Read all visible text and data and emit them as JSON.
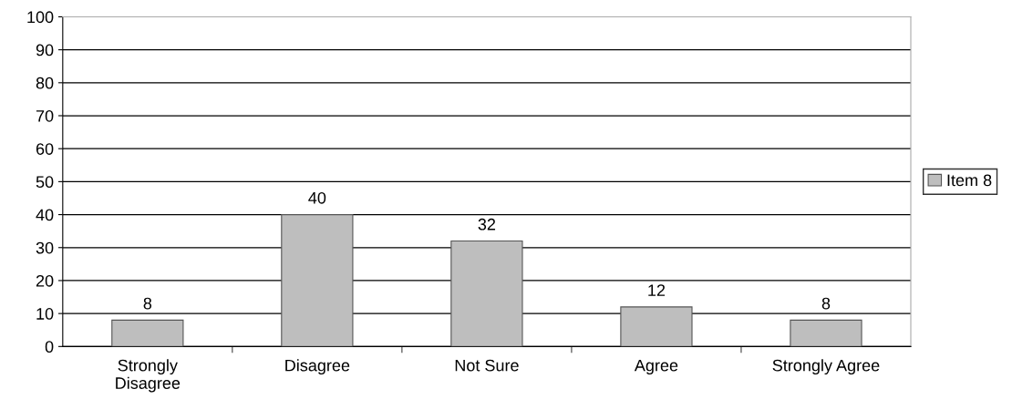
{
  "chart_data": {
    "type": "bar",
    "categories": [
      "Strongly\nDisagree",
      "Disagree",
      "Not Sure",
      "Agree",
      "Strongly Agree"
    ],
    "series": [
      {
        "name": "Item 8",
        "color": "#bebebe",
        "values": [
          8,
          40,
          32,
          12,
          8
        ]
      }
    ],
    "ylim": [
      0,
      100
    ],
    "yticks": [
      0,
      10,
      20,
      30,
      40,
      50,
      60,
      70,
      80,
      90,
      100
    ],
    "grid": "y",
    "legend": "right",
    "data_labels": true
  }
}
